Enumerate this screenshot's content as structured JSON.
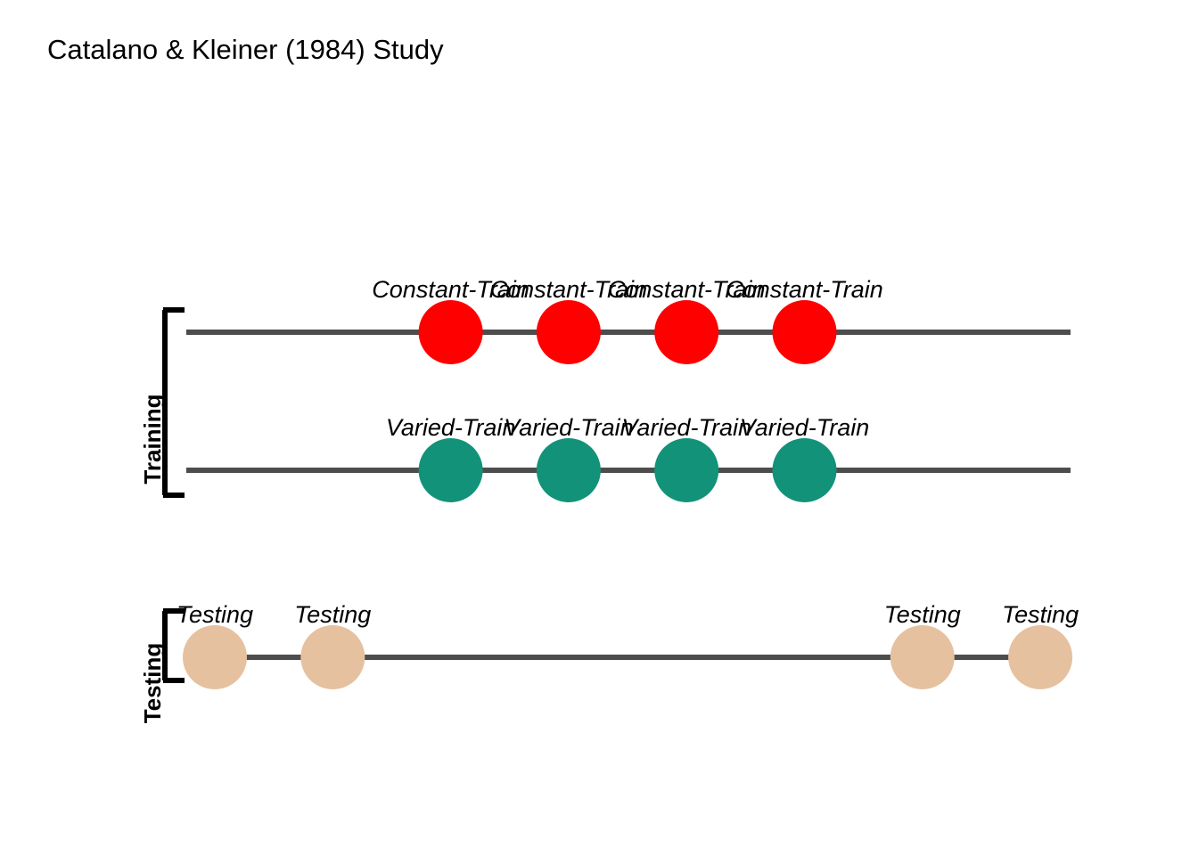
{
  "title": "Catalano & Kleiner (1984) Study",
  "groups": [
    {
      "label": "Training"
    },
    {
      "label": "Testing"
    }
  ],
  "tracks": [
    {
      "group": 0,
      "color": "#ff0000",
      "points": [
        {
          "pos": 3,
          "label": "Constant-Train"
        },
        {
          "pos": 4,
          "label": "Constant-Train"
        },
        {
          "pos": 5,
          "label": "Constant-Train"
        },
        {
          "pos": 6,
          "label": "Constant-Train"
        }
      ]
    },
    {
      "group": 0,
      "color": "#129279",
      "points": [
        {
          "pos": 3,
          "label": "Varied-Train"
        },
        {
          "pos": 4,
          "label": "Varied-Train"
        },
        {
          "pos": 5,
          "label": "Varied-Train"
        },
        {
          "pos": 6,
          "label": "Varied-Train"
        }
      ]
    },
    {
      "group": 1,
      "color": "#e6c19f",
      "points": [
        {
          "pos": 1,
          "label": "Testing"
        },
        {
          "pos": 2,
          "label": "Testing"
        },
        {
          "pos": 7,
          "label": "Testing"
        },
        {
          "pos": 8,
          "label": "Testing"
        }
      ]
    }
  ],
  "colors": {
    "line": "#4d4d4d",
    "bracket": "#000000"
  }
}
